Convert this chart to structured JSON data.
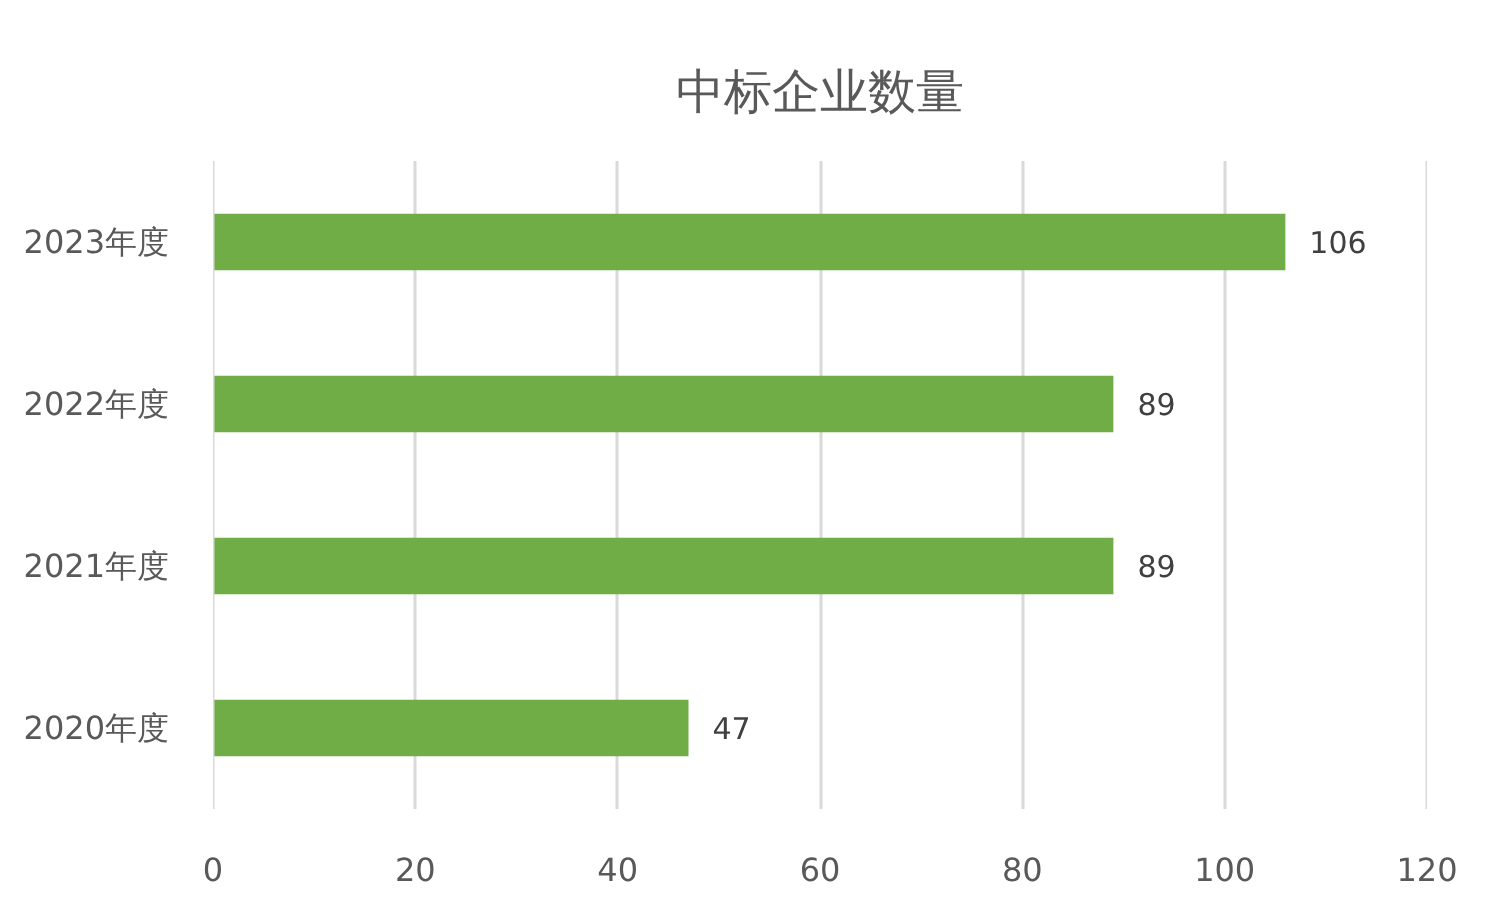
{
  "chart_data": {
    "type": "bar",
    "orientation": "horizontal",
    "title": "中标企业数量",
    "categories": [
      "2023年度",
      "2022年度",
      "2021年度",
      "2020年度"
    ],
    "values": [
      106,
      89,
      89,
      47
    ],
    "color": "#70ad47",
    "xlim": [
      0,
      120
    ],
    "xticks": [
      0,
      20,
      40,
      60,
      80,
      100,
      120
    ],
    "grid": "x",
    "data_labels": true
  }
}
